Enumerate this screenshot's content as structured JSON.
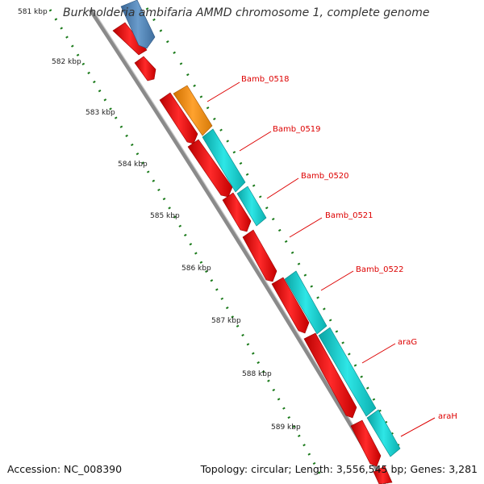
{
  "title": "Burkholderia ambifaria AMMD chromosome 1, complete genome",
  "accession": "Accession: NC_008390",
  "topology": "Topology: circular; Length: 3,556,545 bp; Genes: 3,281",
  "ticks": [
    "581 kbp",
    "582 kbp",
    "583 kbp",
    "584 kbp",
    "585 kbp",
    "586 kbp",
    "587 kbp",
    "588 kbp",
    "589 kbp"
  ],
  "gene_labels": [
    "Bamb_0518",
    "Bamb_0519",
    "Bamb_0520",
    "Bamb_0521",
    "Bamb_0522",
    "araG",
    "araH"
  ],
  "colors": {
    "backbone": "#8a8a8a",
    "gene_red": "#ee1111",
    "gene_teal": "#11cccc",
    "gene_orange": "#f08c14",
    "gene_blue": "#4f82b8",
    "tick_green": "#1a7a1a",
    "label_red": "#dd0000"
  }
}
